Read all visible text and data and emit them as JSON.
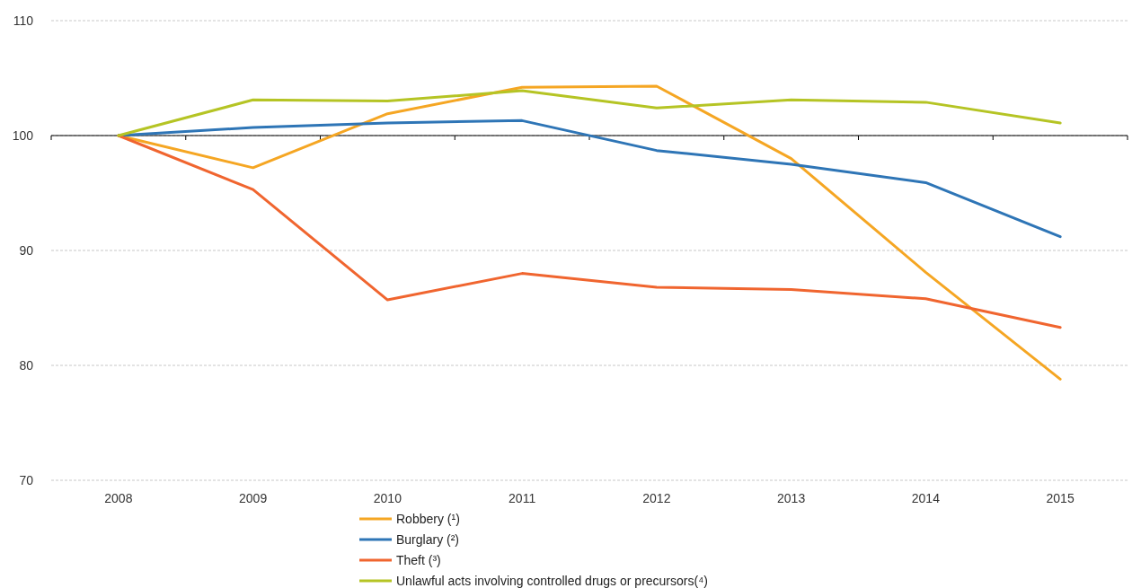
{
  "chart_data": {
    "type": "line",
    "categories": [
      "2008",
      "2009",
      "2010",
      "2011",
      "2012",
      "2013",
      "2014",
      "2015"
    ],
    "series": [
      {
        "name": "Robbery  (¹)",
        "color": "#f5a623",
        "values": [
          100,
          97.2,
          101.9,
          104.2,
          104.3,
          98.0,
          88.1,
          78.8
        ]
      },
      {
        "name": "Burglary  (²)",
        "color": "#2e75b6",
        "values": [
          100,
          100.7,
          101.1,
          101.3,
          98.7,
          97.5,
          95.9,
          91.2
        ]
      },
      {
        "name": "Theft (³)",
        "color": "#f0652f",
        "values": [
          100,
          95.3,
          85.7,
          88.0,
          86.8,
          86.6,
          85.8,
          83.3
        ]
      },
      {
        "name": "Unlawful  acts involving  controlled drugs or precursors(⁴)",
        "color": "#b5c424",
        "values": [
          100,
          103.1,
          103.0,
          103.9,
          102.4,
          103.1,
          102.9,
          101.1
        ]
      }
    ],
    "ylim": [
      70,
      110
    ],
    "yticks": [
      70,
      80,
      90,
      100,
      110
    ],
    "grid": "y",
    "legend": "bottom",
    "marker": "none",
    "line_style": "solid",
    "ref_lines": [
      {
        "axis": "y",
        "value": 100,
        "color": "#000000"
      }
    ]
  }
}
